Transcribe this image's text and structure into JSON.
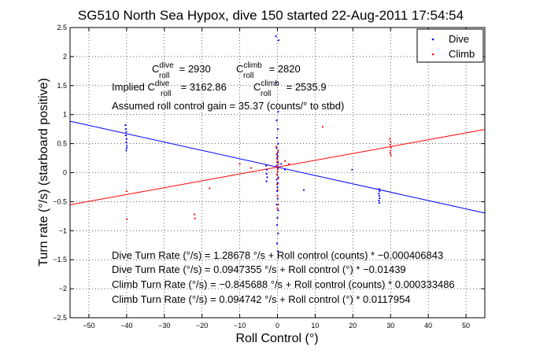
{
  "chart_data": {
    "type": "scatter",
    "title": "SG510 North Sea Hypox, dive 150 started 22-Aug-2011 17:54:54",
    "xlabel": "Roll Control (°)",
    "ylabel": "Turn rate (°/s) (starboard positive)",
    "xlim": [
      -55,
      55
    ],
    "ylim": [
      -2.5,
      2.5
    ],
    "xticks": [
      -50,
      -40,
      -30,
      -20,
      -10,
      0,
      10,
      20,
      30,
      40,
      50
    ],
    "yticks": [
      -2.5,
      -2,
      -1.5,
      -1,
      -0.5,
      0,
      0.5,
      1,
      1.5,
      2,
      2.5
    ],
    "xtick_labels": [
      "−50",
      "−40",
      "−30",
      "−20",
      "−10",
      "0",
      "10",
      "20",
      "30",
      "40",
      "50"
    ],
    "ytick_labels": [
      "−2.5",
      "−2",
      "−1.5",
      "−1",
      "−0.5",
      "0",
      "0.5",
      "1",
      "1.5",
      "2",
      "2.5"
    ],
    "grid": true,
    "legend_position": "top-right",
    "series": [
      {
        "name": "Dive",
        "color": "#0000ff",
        "marker": "dot",
        "points": [
          [
            -40.3,
            0.82
          ],
          [
            -40.2,
            0.75
          ],
          [
            -40.1,
            0.7
          ],
          [
            -40.2,
            0.64
          ],
          [
            -40.0,
            0.58
          ],
          [
            -40.1,
            0.52
          ],
          [
            -39.9,
            0.46
          ],
          [
            -40.0,
            0.42
          ],
          [
            -40.1,
            0.38
          ],
          [
            -3.0,
            0.12
          ],
          [
            -2.8,
            0.05
          ],
          [
            -2.9,
            -0.02
          ],
          [
            -2.7,
            -0.08
          ],
          [
            -2.9,
            -0.15
          ],
          [
            -0.4,
            2.35
          ],
          [
            0.3,
            2.28
          ],
          [
            -0.3,
            1.55
          ],
          [
            0.2,
            1.05
          ],
          [
            -0.2,
            0.9
          ],
          [
            0.1,
            0.75
          ],
          [
            -0.1,
            0.6
          ],
          [
            0.2,
            0.5
          ],
          [
            -0.2,
            0.42
          ],
          [
            0.1,
            0.35
          ],
          [
            0.0,
            0.3
          ],
          [
            -0.1,
            0.25
          ],
          [
            0.2,
            0.18
          ],
          [
            -0.2,
            0.12
          ],
          [
            0.1,
            0.08
          ],
          [
            0.0,
            0.02
          ],
          [
            -0.1,
            -0.03
          ],
          [
            0.2,
            -0.08
          ],
          [
            -0.2,
            -0.12
          ],
          [
            0.1,
            -0.18
          ],
          [
            0.0,
            -0.25
          ],
          [
            -0.1,
            -0.32
          ],
          [
            0.1,
            -0.45
          ],
          [
            -0.2,
            -0.55
          ],
          [
            0.2,
            -0.65
          ],
          [
            0.0,
            -0.78
          ],
          [
            -0.1,
            -0.9
          ],
          [
            0.2,
            -1.05
          ],
          [
            -0.1,
            -1.22
          ],
          [
            0.1,
            -1.35
          ],
          [
            1.0,
            0.15
          ],
          [
            2.0,
            0.05
          ],
          [
            7.0,
            -0.3
          ],
          [
            19.8,
            0.05
          ],
          [
            27.0,
            -0.28
          ],
          [
            27.1,
            -0.32
          ],
          [
            26.9,
            -0.36
          ],
          [
            27.0,
            -0.4
          ],
          [
            27.1,
            -0.44
          ],
          [
            26.9,
            -0.48
          ],
          [
            27.0,
            -0.52
          ]
        ]
      },
      {
        "name": "Climb",
        "color": "#ff0000",
        "marker": "dot",
        "points": [
          [
            -40.0,
            -0.32
          ],
          [
            -39.9,
            -0.8
          ],
          [
            -22.0,
            -0.72
          ],
          [
            -21.9,
            -0.79
          ],
          [
            -18.0,
            -0.27
          ],
          [
            -10.0,
            0.15
          ],
          [
            -7.0,
            0.08
          ],
          [
            -0.3,
            0.45
          ],
          [
            0.2,
            0.38
          ],
          [
            -0.2,
            0.32
          ],
          [
            0.1,
            0.27
          ],
          [
            0.0,
            0.22
          ],
          [
            -0.1,
            0.18
          ],
          [
            0.2,
            0.14
          ],
          [
            -0.2,
            0.1
          ],
          [
            0.1,
            0.06
          ],
          [
            0.0,
            0.02
          ],
          [
            -0.1,
            -0.04
          ],
          [
            0.2,
            -0.1
          ],
          [
            -0.1,
            -0.2
          ],
          [
            0.1,
            -0.3
          ],
          [
            0.0,
            -0.4
          ],
          [
            0.2,
            -0.55
          ],
          [
            0.0,
            -0.62
          ],
          [
            2.0,
            0.2
          ],
          [
            3.0,
            0.15
          ],
          [
            12.0,
            0.79
          ],
          [
            29.8,
            0.58
          ],
          [
            30.0,
            0.53
          ],
          [
            29.9,
            0.48
          ],
          [
            30.1,
            0.43
          ],
          [
            30.0,
            0.38
          ],
          [
            29.9,
            0.34
          ],
          [
            30.1,
            0.3
          ]
        ]
      }
    ],
    "fit_lines": [
      {
        "series": "Dive",
        "intercept": 0.0947355,
        "slope": -0.01439,
        "color": "#0000ff"
      },
      {
        "series": "Climb",
        "intercept": 0.094742,
        "slope": 0.0117954,
        "color": "#ff0000"
      }
    ],
    "annotations": {
      "c_roll_dive": {
        "prefix": "C",
        "sup": "dive",
        "sub": "roll",
        "value": " = 2930"
      },
      "c_roll_climb": {
        "prefix": "C",
        "sup": "climb",
        "sub": "roll",
        "value": " = 2820"
      },
      "implied_dive": {
        "lead": "Implied ",
        "prefix": "C",
        "sup": "dive",
        "sub": "roll",
        "value": " = 3162.86"
      },
      "implied_climb": {
        "prefix": "C",
        "sup": "climb",
        "sub": "roll",
        "value": " = 2535.9"
      },
      "gain": "Assumed roll control gain = 35.37 (counts/° to stbd)",
      "fit_lines": [
        "Dive Turn Rate (°/s) = 1.28678 °/s + Roll control (counts) * −0.000406843",
        "Dive Turn Rate (°/s) = 0.0947355 °/s + Roll control (°) * −0.01439",
        "Climb Turn Rate (°/s) = −0.845688 °/s + Roll control (counts) * 0.000333486",
        "Climb Turn Rate (°/s) = 0.094742 °/s + Roll control (°) * 0.0117954"
      ]
    }
  }
}
